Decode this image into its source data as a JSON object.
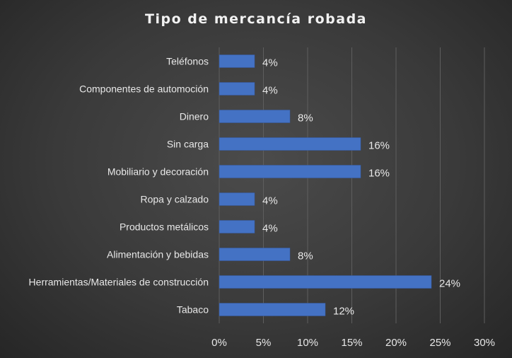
{
  "chart_data": {
    "type": "bar",
    "orientation": "horizontal",
    "title": "Tipo de mercancía robada",
    "categories": [
      "Teléfonos",
      "Componentes de automoción",
      "Dinero",
      "Sin carga",
      "Mobiliario y decoración",
      "Ropa y calzado",
      "Productos metálicos",
      "Alimentación y bebidas",
      "Herramientas/Materiales de construcción",
      "Tabaco"
    ],
    "values": [
      4,
      4,
      8,
      16,
      16,
      4,
      4,
      8,
      24,
      12
    ],
    "data_labels": [
      "4%",
      "4%",
      "8%",
      "16%",
      "16%",
      "4%",
      "4%",
      "8%",
      "24%",
      "12%"
    ],
    "xlim": [
      0,
      30
    ],
    "x_ticks": [
      0,
      5,
      10,
      15,
      20,
      25,
      30
    ],
    "x_tick_labels": [
      "0%",
      "5%",
      "10%",
      "15%",
      "20%",
      "25%",
      "30%"
    ],
    "grid": true,
    "legend": "none",
    "bar_color": "#4472c4",
    "background_color": "#3a3a3a"
  }
}
